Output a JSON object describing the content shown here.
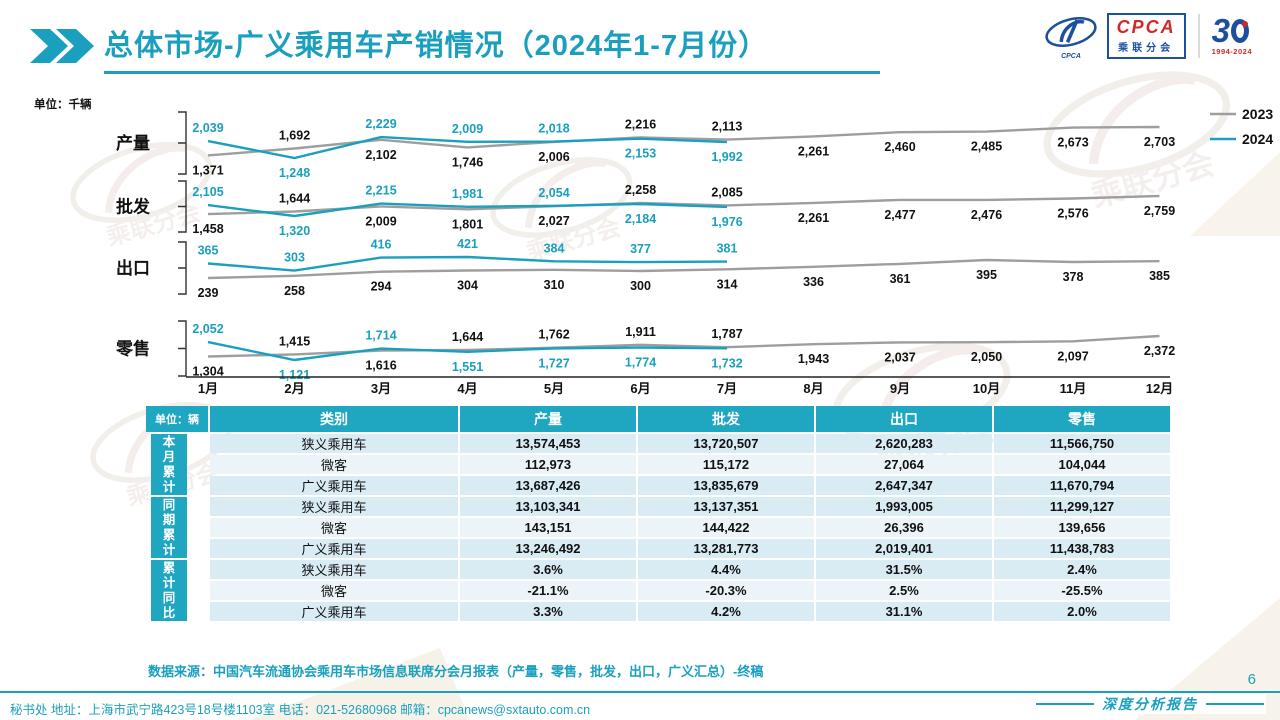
{
  "header": {
    "title": "总体市场-广义乘用车产销情况（2024年1-7月份）",
    "logo": {
      "cpca": "CPCA",
      "sub": "乘联分会",
      "anniversary": "30",
      "years": "1994-2024"
    }
  },
  "chart_data": {
    "type": "line",
    "unit_label": "单位：千辆",
    "categories": [
      "1月",
      "2月",
      "3月",
      "4月",
      "5月",
      "6月",
      "7月",
      "8月",
      "9月",
      "10月",
      "11月",
      "12月"
    ],
    "legend": [
      "2023",
      "2024"
    ],
    "legend_position": "top-right",
    "colors": {
      "series2023": "#9e9e9e",
      "series2024": "#1aa0be"
    },
    "rows": [
      {
        "label": "产量",
        "series": [
          {
            "name": "2023",
            "values": [
              1371,
              1692,
              2102,
              1746,
              2006,
              2216,
              2113,
              2261,
              2460,
              2485,
              2673,
              2703
            ]
          },
          {
            "name": "2024",
            "values": [
              2039,
              1248,
              2229,
              2009,
              2018,
              2153,
              1992
            ]
          }
        ]
      },
      {
        "label": "批发",
        "series": [
          {
            "name": "2023",
            "values": [
              1458,
              1644,
              2009,
              1801,
              2027,
              2258,
              2085,
              2261,
              2477,
              2476,
              2576,
              2759
            ]
          },
          {
            "name": "2024",
            "values": [
              2105,
              1320,
              2215,
              1981,
              2054,
              2184,
              1976
            ]
          }
        ]
      },
      {
        "label": "出口",
        "series": [
          {
            "name": "2023",
            "values": [
              239,
              258,
              294,
              304,
              310,
              300,
              314,
              336,
              361,
              395,
              378,
              385
            ]
          },
          {
            "name": "2024",
            "values": [
              365,
              303,
              416,
              421,
              384,
              377,
              381
            ]
          }
        ]
      },
      {
        "label": "零售",
        "series": [
          {
            "name": "2023",
            "values": [
              1304,
              1415,
              1616,
              1644,
              1762,
              1911,
              1787,
              1943,
              2037,
              2050,
              2097,
              2372
            ]
          },
          {
            "name": "2024",
            "values": [
              2052,
              1121,
              1714,
              1551,
              1727,
              1774,
              1732
            ]
          }
        ]
      }
    ]
  },
  "table": {
    "unit_label": "单位：辆",
    "columns": [
      "类别",
      "产量",
      "批发",
      "出口",
      "零售"
    ],
    "groups": [
      {
        "label": "本月累计",
        "rows": [
          {
            "category": "狭义乘用车",
            "values": [
              "13,574,453",
              "13,720,507",
              "2,620,283",
              "11,566,750"
            ]
          },
          {
            "category": "微客",
            "values": [
              "112,973",
              "115,172",
              "27,064",
              "104,044"
            ]
          },
          {
            "category": "广义乘用车",
            "values": [
              "13,687,426",
              "13,835,679",
              "2,647,347",
              "11,670,794"
            ]
          }
        ]
      },
      {
        "label": "同期累计",
        "rows": [
          {
            "category": "狭义乘用车",
            "values": [
              "13,103,341",
              "13,137,351",
              "1,993,005",
              "11,299,127"
            ]
          },
          {
            "category": "微客",
            "values": [
              "143,151",
              "144,422",
              "26,396",
              "139,656"
            ]
          },
          {
            "category": "广义乘用车",
            "values": [
              "13,246,492",
              "13,281,773",
              "2,019,401",
              "11,438,783"
            ]
          }
        ]
      },
      {
        "label": "累计同比",
        "rows": [
          {
            "category": "狭义乘用车",
            "values": [
              "3.6%",
              "4.4%",
              "31.5%",
              "2.4%"
            ]
          },
          {
            "category": "微客",
            "values": [
              "-21.1%",
              "-20.3%",
              "2.5%",
              "-25.5%"
            ]
          },
          {
            "category": "广义乘用车",
            "values": [
              "3.3%",
              "4.2%",
              "31.1%",
              "2.0%"
            ]
          }
        ]
      }
    ]
  },
  "source_note": "数据来源：中国汽车流通协会乘用车市场信息联席分会月报表（产量，零售，批发，出口，广义汇总）-终稿",
  "footer": {
    "contact": "秘书处  地址：上海市武宁路423号18号楼1103室  电话：021-52680968   邮箱：cpcanews@sxtauto.com.cn",
    "page": "6",
    "report_label": "深度分析报告"
  },
  "colors": {
    "accent": "#1aa0be",
    "table_header": "#1fa6c1",
    "row_light": "#d9ecf4",
    "row_lighter": "#ebf5f9",
    "label_black": "#111111"
  }
}
